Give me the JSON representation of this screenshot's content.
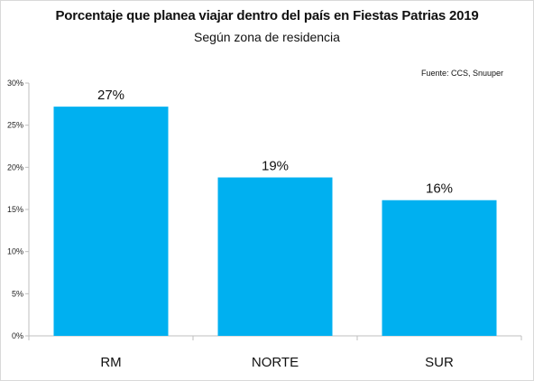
{
  "chart_data": {
    "type": "bar",
    "title": "Porcentaje que planea viajar dentro del país en Fiestas Patrias 2019",
    "subtitle": "Según zona de residencia",
    "source": "Fuente: CCS, Snuuper",
    "categories": [
      "RM",
      "NORTE",
      "SUR"
    ],
    "values": [
      27.2,
      18.8,
      16.1
    ],
    "data_labels": [
      "27%",
      "19%",
      "16%"
    ],
    "ylim": [
      0,
      30
    ],
    "yticks": [
      0,
      5,
      10,
      15,
      20,
      25,
      30
    ],
    "ytick_labels": [
      "0%",
      "5%",
      "10%",
      "15%",
      "20%",
      "25%",
      "30%"
    ],
    "xlabel": "",
    "ylabel": "",
    "grid": false,
    "bar_color": "#00b0f0"
  }
}
